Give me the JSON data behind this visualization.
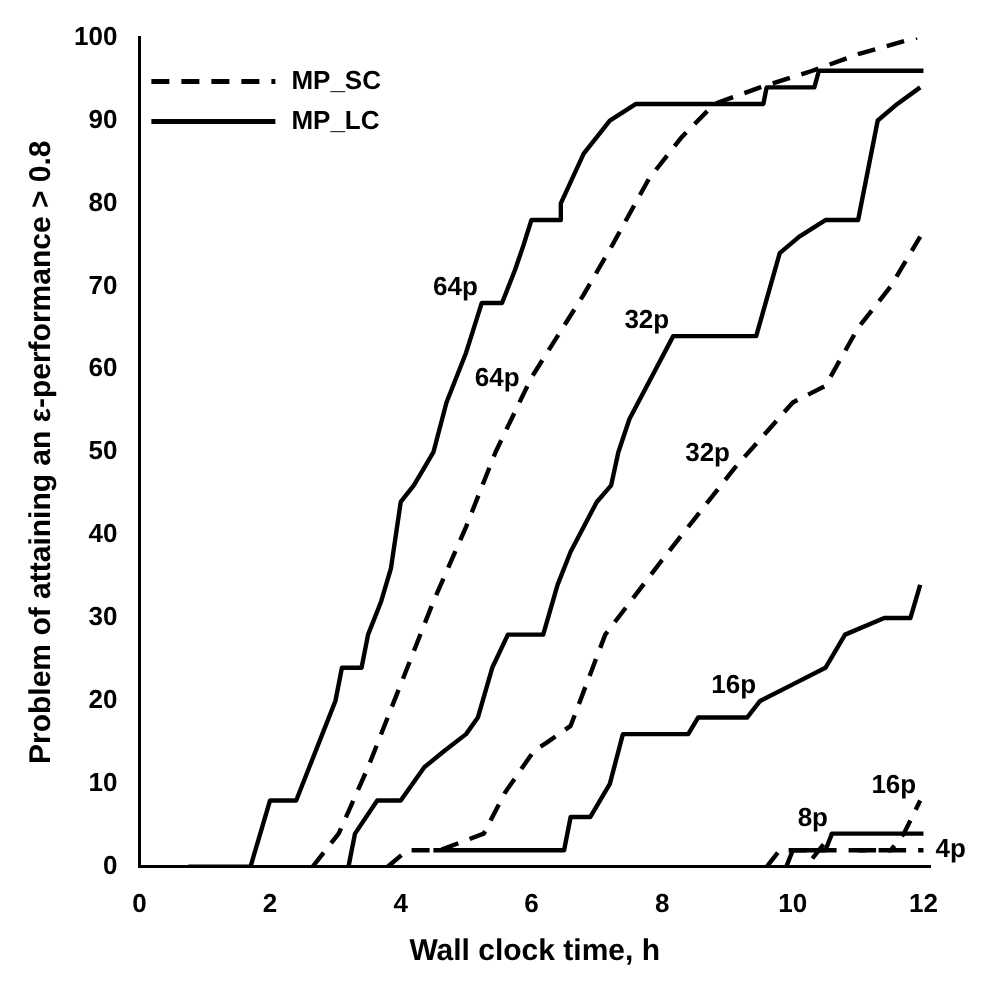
{
  "chart_data": {
    "type": "line",
    "xlabel": "Wall clock time, h",
    "ylabel": "Problem of attaining an ε-performance > 0.8",
    "xlim": [
      0,
      12.1
    ],
    "xticks": [
      0,
      2,
      4,
      6,
      8,
      10,
      12
    ],
    "ylim": [
      0,
      100
    ],
    "yticks": [
      0,
      10,
      20,
      30,
      40,
      50,
      60,
      70,
      80,
      90,
      100
    ],
    "grid": false,
    "legend": "top left",
    "series": [
      {
        "name": "MP_SC",
        "color": "#000000",
        "line_style": "dashed",
        "x": [
          2.65,
          3.05,
          3.5,
          4.0,
          4.5,
          5.0,
          5.45,
          6.0,
          6.4,
          6.8,
          7.24,
          7.8,
          8.3,
          8.8,
          9.5,
          10.3,
          11.0,
          11.9
        ],
        "values": [
          0,
          4,
          12,
          22,
          32,
          41,
          50,
          59,
          64,
          69,
          75,
          83,
          88,
          92,
          94,
          96,
          98,
          100
        ]
      },
      {
        "name": "MP_LC",
        "color": "#000000",
        "line_style": "solid",
        "x": [
          0.75,
          1.7,
          1.85,
          2.0,
          2.4,
          2.6,
          2.8,
          3.0,
          3.1,
          3.4,
          3.5,
          3.7,
          3.85,
          4.0,
          4.2,
          4.35,
          4.5,
          4.7,
          5.0,
          5.24,
          5.55,
          5.75,
          5.88,
          6.0,
          6.45,
          6.45,
          6.8,
          7.2,
          7.6,
          9.55,
          9.6,
          10.33,
          10.4,
          12.0
        ],
        "values": [
          0,
          0,
          4,
          8,
          8,
          12,
          16,
          20,
          24,
          24,
          28,
          32,
          36,
          44,
          46,
          48,
          50,
          56,
          62,
          68,
          68,
          72,
          75,
          78,
          78,
          80,
          86,
          90,
          92,
          92,
          94,
          94,
          96,
          96
        ]
      },
      {
        "color": "#000000",
        "line_style": "solid",
        "x": [
          3.2,
          3.3,
          3.64,
          4.0,
          4.36,
          4.67,
          5.0,
          5.18,
          5.4,
          5.64,
          6.18,
          6.4,
          6.6,
          7.0,
          7.22,
          7.33,
          7.5,
          8.17,
          9.44,
          9.8,
          10.1,
          10.5,
          11.0,
          11.3,
          11.6,
          11.95
        ],
        "values": [
          0,
          4,
          8,
          8,
          12,
          14,
          16,
          18,
          24,
          28,
          28,
          34,
          38,
          44,
          46,
          50,
          54,
          64,
          64,
          74,
          76,
          78,
          78,
          90,
          92,
          94
        ]
      },
      {
        "color": "#000000",
        "line_style": "dashed",
        "x": [
          3.8,
          4.1,
          4.6,
          5.27,
          5.6,
          6.04,
          6.24,
          6.6,
          7.13,
          8.0,
          8.5,
          9.1,
          10.0,
          10.5,
          11.0,
          11.5,
          11.95
        ],
        "values": [
          0,
          2,
          2,
          4,
          9,
          14,
          15,
          17,
          28,
          37,
          42,
          48,
          56,
          58,
          65,
          70,
          76
        ]
      },
      {
        "color": "#000000",
        "line_style": "solid",
        "x": [
          4.5,
          6.5,
          6.6,
          6.9,
          7.2,
          7.4,
          8.4,
          8.55,
          9.3,
          9.5,
          10.0,
          10.5,
          10.8,
          11.4,
          11.8,
          11.95
        ],
        "values": [
          2,
          2,
          6,
          6,
          10,
          16,
          16,
          18,
          18,
          20,
          22,
          24,
          28,
          30,
          30,
          34
        ]
      },
      {
        "color": "#000000",
        "line_style": "dashed",
        "x": [
          9.6,
          9.8,
          11.5,
          11.7,
          11.95
        ],
        "values": [
          0,
          2,
          2,
          4,
          8
        ]
      },
      {
        "color": "#000000",
        "line_style": "solid",
        "x": [
          9.9,
          10.0,
          10.5,
          10.6,
          12.0
        ],
        "values": [
          0,
          2,
          2,
          4,
          4
        ]
      },
      {
        "color": "#000000",
        "line_style": "dashed",
        "x": [
          10.3,
          10.6
        ],
        "values": [
          1,
          4
        ]
      },
      {
        "color": "#000000",
        "line_style": "dashed",
        "x": [
          11.0,
          12.0
        ],
        "values": [
          2,
          2
        ]
      }
    ],
    "annotations": [
      {
        "text": "64p",
        "x": 5.24,
        "y": 68
      },
      {
        "text": "64p",
        "x": 5.88,
        "y": 57
      },
      {
        "text": "32p",
        "x": 8.17,
        "y": 64
      },
      {
        "text": "32p",
        "x": 9.1,
        "y": 48
      },
      {
        "text": "16p",
        "x": 9.5,
        "y": 20
      },
      {
        "text": "16p",
        "x": 11.95,
        "y": 8
      },
      {
        "text": "8p",
        "x": 10.6,
        "y": 4
      },
      {
        "text": "4p",
        "x": 12.0,
        "y": 2
      }
    ]
  }
}
